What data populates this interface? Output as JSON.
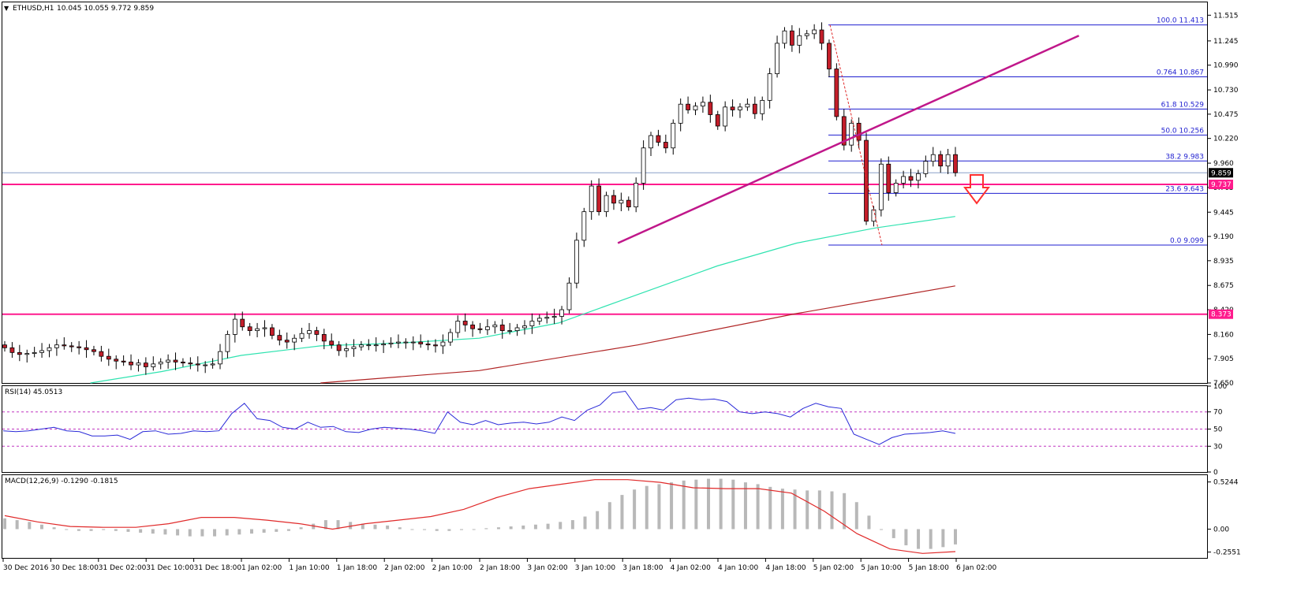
{
  "chart_data": {
    "type": "candlestick",
    "main": {
      "title": "ETHUSD,H1",
      "ohlc_header": "10.045 10.055 9.772 9.859",
      "ylim": [
        7.65,
        11.65
      ],
      "yticks": [
        "11.515",
        "11.245",
        "10.990",
        "10.730",
        "10.475",
        "10.220",
        "9.960",
        "9.705",
        "9.445",
        "9.190",
        "8.935",
        "8.675",
        "8.420",
        "8.160",
        "7.905",
        "7.650"
      ],
      "yticks_values": [
        11.515,
        11.245,
        10.99,
        10.73,
        10.475,
        10.22,
        9.96,
        9.705,
        9.445,
        9.19,
        8.935,
        8.675,
        8.42,
        8.16,
        7.905,
        7.65
      ],
      "current_price": "9.859",
      "current_price_value": 9.859,
      "level_labels": [
        "9.737",
        "8.373"
      ],
      "level_values": [
        9.737,
        8.373
      ],
      "fib_labels": [
        "100.0  11.413",
        "0.764  10.867",
        "61.8  10.529",
        "50.0  10.256",
        "38.2  9.983",
        "23.6  9.643",
        "0.0  9.099"
      ],
      "fib_values": [
        11.413,
        10.867,
        10.529,
        10.256,
        9.983,
        9.643,
        9.099
      ],
      "trendline": {
        "from": [
          3.0,
          9.12
        ],
        "to": [
          5.25,
          11.3
        ]
      },
      "candle_color_up": "#ffffff",
      "candle_color_down": "#c41e2a",
      "level_color": "#ff1b8d",
      "fib_color": "#1f1fd0",
      "ma_fast_color": "#2fe3b0",
      "ma_slow_color": "#b02424",
      "arrow_color": "#ff3030",
      "closes": [
        8.02,
        7.97,
        7.95,
        7.96,
        7.97,
        7.99,
        8.02,
        8.05,
        8.04,
        8.03,
        8.02,
        8.0,
        7.98,
        7.93,
        7.9,
        7.88,
        7.87,
        7.84,
        7.86,
        7.82,
        7.85,
        7.87,
        7.89,
        7.87,
        7.86,
        7.85,
        7.84,
        7.84,
        7.85,
        7.98,
        8.16,
        8.32,
        8.24,
        8.2,
        8.22,
        8.23,
        8.15,
        8.1,
        8.08,
        8.12,
        8.17,
        8.2,
        8.16,
        8.09,
        8.05,
        7.99,
        8.01,
        8.03,
        8.05,
        8.05,
        8.05,
        8.06,
        8.07,
        8.08,
        8.08,
        8.08,
        8.06,
        8.05,
        8.04,
        8.08,
        8.18,
        8.3,
        8.26,
        8.22,
        8.21,
        8.24,
        8.26,
        8.2,
        8.2,
        8.23,
        8.25,
        8.3,
        8.33,
        8.34,
        8.35,
        8.42,
        8.7,
        9.15,
        9.45,
        9.72,
        9.45,
        9.62,
        9.54,
        9.57,
        9.5,
        9.75,
        10.12,
        10.25,
        10.18,
        10.12,
        10.38,
        10.58,
        10.52,
        10.56,
        10.6,
        10.47,
        10.35,
        10.55,
        10.52,
        10.55,
        10.58,
        10.48,
        10.62,
        10.9,
        11.22,
        11.35,
        11.2,
        11.3,
        11.32,
        11.36,
        11.22,
        10.95,
        10.45,
        10.15,
        10.38,
        10.2,
        9.35,
        9.47,
        9.95,
        9.65,
        9.75,
        9.82,
        9.78,
        9.85,
        9.98,
        10.05,
        9.93,
        10.05,
        9.86
      ],
      "ma_fast": [
        [
          0.55,
          7.65
        ],
        [
          1.0,
          7.77
        ],
        [
          1.5,
          7.94
        ],
        [
          2.0,
          8.04
        ],
        [
          2.5,
          8.07
        ],
        [
          3.0,
          8.12
        ],
        [
          3.5,
          8.28
        ],
        [
          4.0,
          8.58
        ],
        [
          4.5,
          8.88
        ],
        [
          5.0,
          9.12
        ],
        [
          5.5,
          9.28
        ],
        [
          6.0,
          9.4
        ]
      ],
      "ma_slow": [
        [
          2.0,
          7.65
        ],
        [
          3.0,
          7.78
        ],
        [
          4.0,
          8.05
        ],
        [
          5.0,
          8.38
        ],
        [
          6.0,
          8.67
        ]
      ]
    },
    "rsi": {
      "label": "RSI(14) 45.0513",
      "ylim": [
        0,
        100
      ],
      "yticks": [
        "100",
        "70",
        "50",
        "30",
        "0"
      ],
      "yticks_values": [
        100,
        70,
        50,
        30,
        0
      ],
      "levels": [
        70,
        50,
        30
      ],
      "line_color": "#2a2ad8",
      "values": [
        48,
        47,
        48,
        50,
        52,
        48,
        47,
        42,
        42,
        43,
        38,
        47,
        48,
        44,
        45,
        48,
        47,
        48,
        68,
        80,
        62,
        60,
        52,
        50,
        58,
        52,
        53,
        47,
        46,
        50,
        52,
        51,
        50,
        48,
        45,
        70,
        58,
        55,
        60,
        55,
        57,
        58,
        56,
        58,
        64,
        60,
        72,
        78,
        92,
        94,
        73,
        75,
        72,
        84,
        86,
        84,
        85,
        82,
        70,
        68,
        70,
        68,
        64,
        74,
        80,
        76,
        74,
        44,
        38,
        32,
        40,
        44,
        45,
        46,
        48,
        45
      ],
      "x_end": 6.0
    },
    "macd": {
      "label": "MACD(12,26,9) -0.1290 -0.1815",
      "ylim": [
        -0.32,
        0.6
      ],
      "yticks": [
        "0.5244",
        "0.00",
        "-0.2551"
      ],
      "yticks_values": [
        0.5244,
        0.0,
        -0.2551
      ],
      "hist_color": "#b8b8b8",
      "signal_color": "#e02a2a",
      "histogram": [
        0.12,
        0.1,
        0.08,
        0.05,
        0.02,
        0.0,
        -0.02,
        -0.02,
        -0.01,
        -0.02,
        -0.03,
        -0.04,
        -0.05,
        -0.06,
        -0.07,
        -0.08,
        -0.08,
        -0.08,
        -0.07,
        -0.06,
        -0.05,
        -0.04,
        -0.03,
        -0.02,
        0.02,
        0.06,
        0.1,
        0.1,
        0.08,
        0.06,
        0.05,
        0.04,
        0.02,
        0.0,
        -0.01,
        -0.02,
        -0.02,
        -0.01,
        0.0,
        0.01,
        0.02,
        0.03,
        0.04,
        0.05,
        0.06,
        0.08,
        0.1,
        0.14,
        0.2,
        0.3,
        0.38,
        0.44,
        0.48,
        0.5,
        0.52,
        0.54,
        0.55,
        0.56,
        0.56,
        0.55,
        0.52,
        0.5,
        0.47,
        0.45,
        0.44,
        0.43,
        0.43,
        0.42,
        0.4,
        0.3,
        0.15,
        0.0,
        -0.1,
        -0.18,
        -0.22,
        -0.22,
        -0.2,
        -0.17
      ],
      "signal": [
        [
          0.0,
          0.15
        ],
        [
          0.5,
          0.08
        ],
        [
          1.0,
          0.03
        ],
        [
          1.5,
          0.02
        ],
        [
          2.0,
          0.02
        ],
        [
          2.5,
          0.06
        ],
        [
          3.0,
          0.13
        ],
        [
          3.5,
          0.13
        ],
        [
          4.0,
          0.1
        ],
        [
          4.5,
          0.06
        ],
        [
          5.0,
          0.0
        ],
        [
          5.5,
          0.06
        ],
        [
          6.0,
          0.1
        ],
        [
          6.5,
          0.14
        ],
        [
          7.0,
          0.22
        ],
        [
          7.5,
          0.35
        ],
        [
          8.0,
          0.45
        ],
        [
          8.5,
          0.5
        ],
        [
          9.0,
          0.55
        ],
        [
          9.5,
          0.55
        ],
        [
          10.0,
          0.52
        ],
        [
          10.5,
          0.46
        ],
        [
          11.0,
          0.45
        ],
        [
          11.5,
          0.45
        ],
        [
          12.0,
          0.4
        ],
        [
          12.5,
          0.2
        ],
        [
          13.0,
          -0.05
        ],
        [
          13.5,
          -0.22
        ],
        [
          14.0,
          -0.27
        ],
        [
          14.5,
          -0.25
        ]
      ]
    },
    "x_labels": [
      "30 Dec 2016",
      "30 Dec 18:00",
      "31 Dec 02:00",
      "31 Dec 10:00",
      "31 Dec 18:00",
      "1 Jan 02:00",
      "1 Jan 10:00",
      "1 Jan 18:00",
      "2 Jan 02:00",
      "2 Jan 10:00",
      "2 Jan 18:00",
      "3 Jan 02:00",
      "3 Jan 10:00",
      "3 Jan 18:00",
      "4 Jan 02:00",
      "4 Jan 10:00",
      "4 Jan 18:00",
      "5 Jan 02:00",
      "5 Jan 10:00",
      "5 Jan 18:00",
      "6 Jan 02:00"
    ]
  }
}
